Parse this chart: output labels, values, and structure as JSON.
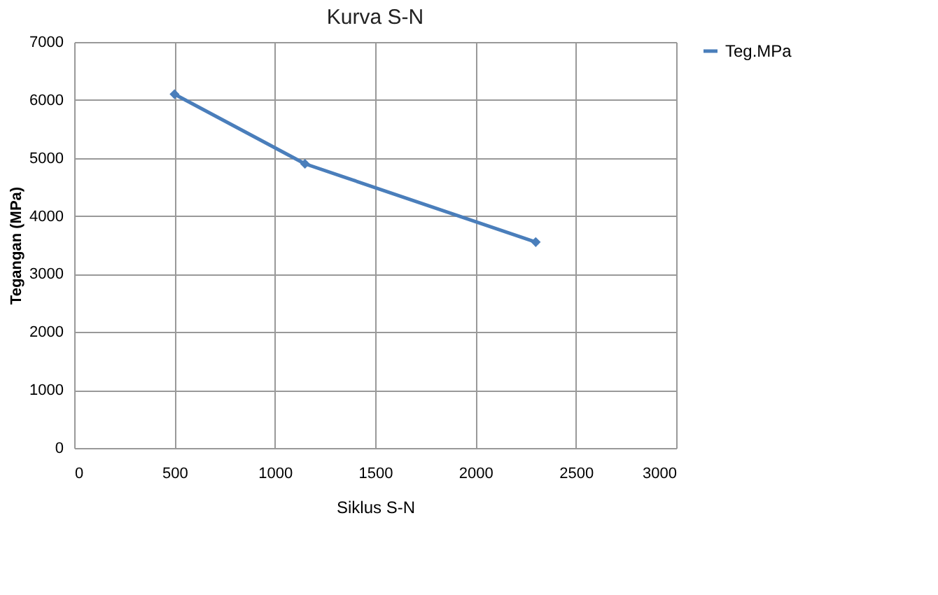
{
  "chart_data": {
    "type": "line",
    "title": "Kurva S-N",
    "xlabel": "Siklus S-N",
    "ylabel": "Tegangan (MPa)",
    "x": [
      500,
      1150,
      2300
    ],
    "series": [
      {
        "name": "Teg.MPa",
        "color": "#4a7ebb",
        "values": [
          6100,
          4900,
          3550
        ]
      }
    ],
    "xlim": [
      0,
      3000
    ],
    "xticks": [
      0,
      500,
      1000,
      1500,
      2000,
      2500,
      3000
    ],
    "ylim": [
      0,
      7000
    ],
    "yticks": [
      0,
      1000,
      2000,
      3000,
      4000,
      5000,
      6000,
      7000
    ],
    "grid": true,
    "legend": "right",
    "marker": "diamond",
    "line_style": "solid"
  }
}
